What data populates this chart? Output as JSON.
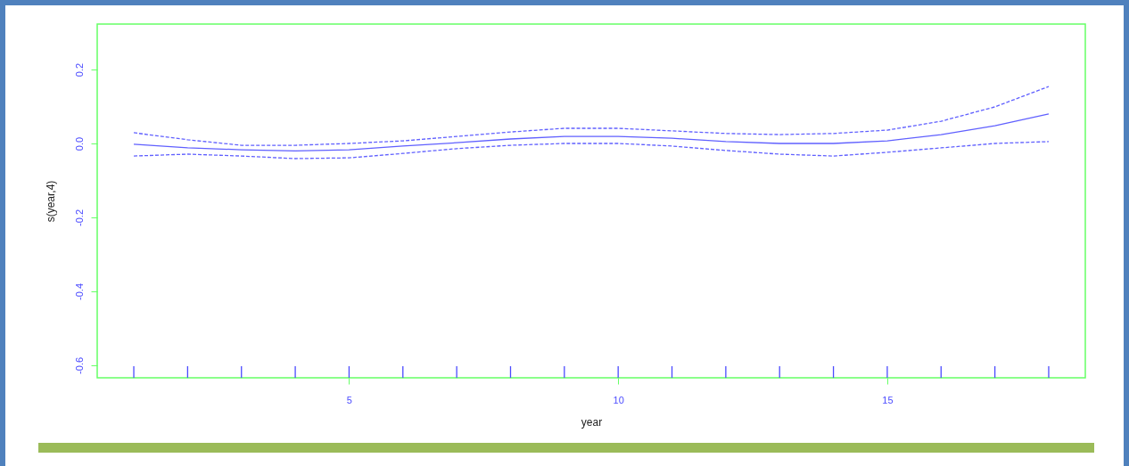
{
  "chart_data": {
    "type": "line",
    "xlabel": "year",
    "ylabel": "s(year,4)",
    "x": [
      1,
      2,
      3,
      4,
      5,
      6,
      7,
      8,
      9,
      10,
      11,
      12,
      13,
      14,
      15,
      16,
      17,
      18
    ],
    "series": [
      {
        "color": "#6060ff",
        "line_style": "solid",
        "values": [
          -0.002,
          -0.012,
          -0.017,
          -0.02,
          -0.017,
          -0.007,
          0.002,
          0.012,
          0.019,
          0.019,
          0.014,
          0.005,
          0,
          0,
          0.007,
          0.024,
          0.048,
          0.08
        ]
      },
      {
        "color": "#6060ff",
        "line_style": "dashed",
        "values": [
          0.029,
          0.01,
          -0.005,
          -0.005,
          0,
          0.007,
          0.019,
          0.031,
          0.041,
          0.041,
          0.034,
          0.027,
          0.024,
          0.027,
          0.036,
          0.06,
          0.099,
          0.154
        ]
      },
      {
        "color": "#6060ff",
        "line_style": "dashed",
        "values": [
          -0.034,
          -0.029,
          -0.034,
          -0.041,
          -0.039,
          -0.027,
          -0.014,
          -0.005,
          0,
          0,
          -0.007,
          -0.019,
          -0.029,
          -0.034,
          -0.024,
          -0.012,
          0,
          0.005
        ]
      }
    ],
    "xlim": [
      0.32,
      18.68
    ],
    "xticks": [
      5,
      10,
      15
    ],
    "ylim": [
      -0.634,
      0.323
    ],
    "yticks": [
      -0.6,
      -0.4,
      -0.2,
      {
        "value": 0,
        "label": "0.0"
      },
      0.2
    ],
    "grid": false,
    "marker": "none"
  }
}
